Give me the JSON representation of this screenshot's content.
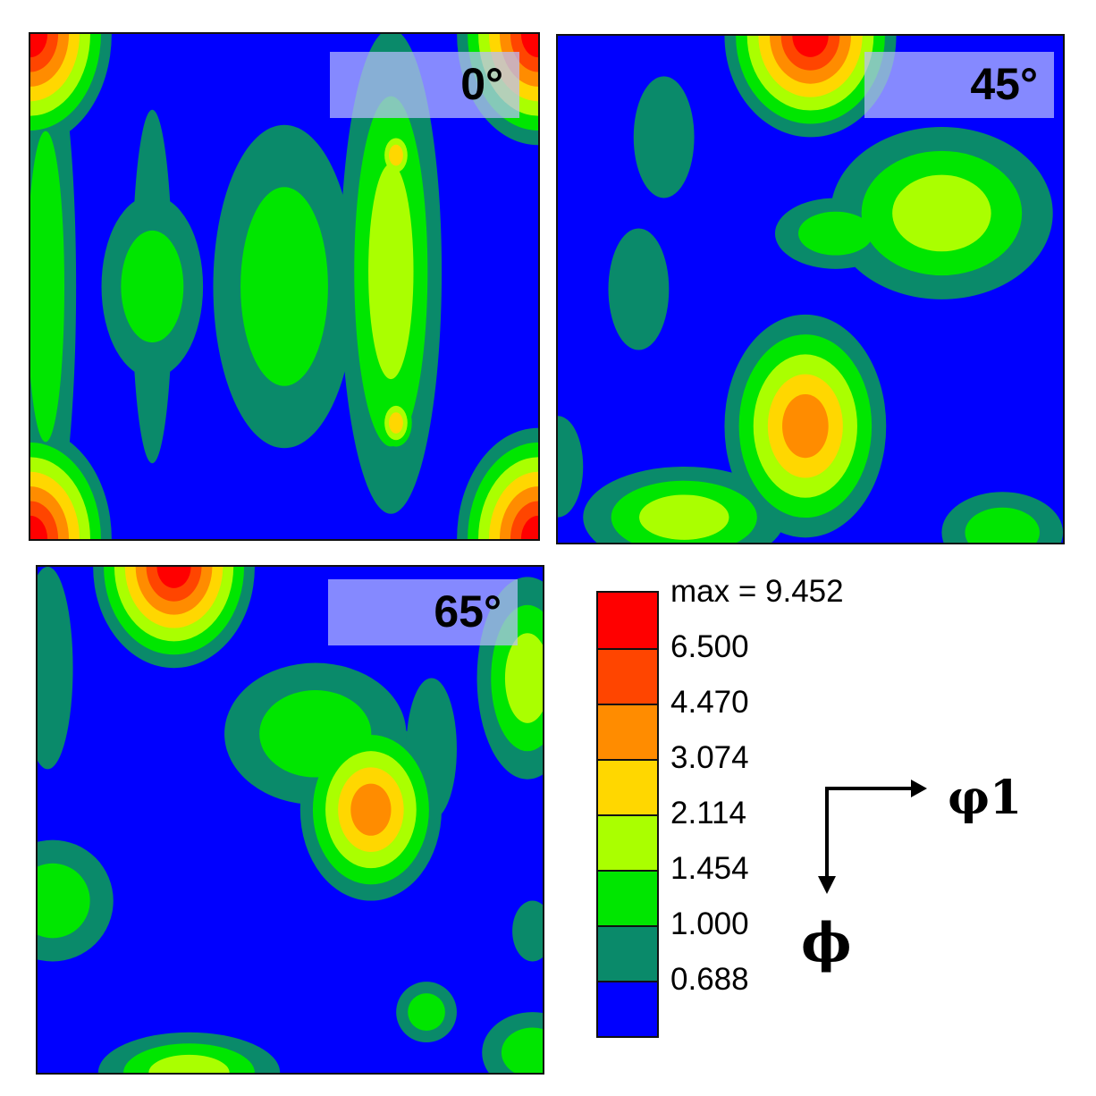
{
  "chart_data": {
    "type": "heatmap",
    "panels": [
      {
        "id": "p0",
        "label": "0°"
      },
      {
        "id": "p45",
        "label": "45°"
      },
      {
        "id": "p65",
        "label": "65°"
      }
    ],
    "levels": [
      {
        "label": "0.688",
        "color": "#0000ff"
      },
      {
        "label": "1.000",
        "color": "#0a8a6a"
      },
      {
        "label": "1.454",
        "color": "#00e600"
      },
      {
        "label": "2.114",
        "color": "#aaff00"
      },
      {
        "label": "3.074",
        "color": "#ffd700"
      },
      {
        "label": "4.470",
        "color": "#ff8c00"
      },
      {
        "label": "6.500",
        "color": "#ff4500"
      },
      {
        "label": "max = 9.452",
        "color": "#ff0000"
      }
    ],
    "axes": {
      "x": "φ1",
      "y": "ϕ"
    },
    "features": {
      "p0": [
        {
          "cx": 0.0,
          "cy": 0.0,
          "rx": 0.16,
          "ry": 0.22,
          "peak": 7
        },
        {
          "cx": 0.0,
          "cy": 1.0,
          "rx": 0.16,
          "ry": 0.22,
          "peak": 7
        },
        {
          "cx": 1.0,
          "cy": 0.0,
          "rx": 0.16,
          "ry": 0.22,
          "peak": 7
        },
        {
          "cx": 1.0,
          "cy": 1.0,
          "rx": 0.16,
          "ry": 0.22,
          "peak": 7
        },
        {
          "cx": 0.03,
          "cy": 0.5,
          "rx": 0.06,
          "ry": 0.5,
          "peak": 2
        },
        {
          "cx": 0.24,
          "cy": 0.5,
          "rx": 0.1,
          "ry": 0.18,
          "peak": 2
        },
        {
          "cx": 0.24,
          "cy": 0.5,
          "rx": 0.04,
          "ry": 0.35,
          "peak": 1
        },
        {
          "cx": 0.5,
          "cy": 0.5,
          "rx": 0.14,
          "ry": 0.32,
          "peak": 2
        },
        {
          "cx": 0.71,
          "cy": 0.47,
          "rx": 0.1,
          "ry": 0.48,
          "peak": 3
        },
        {
          "cx": 0.72,
          "cy": 0.24,
          "rx": 0.04,
          "ry": 0.06,
          "peak": 4
        },
        {
          "cx": 0.72,
          "cy": 0.77,
          "rx": 0.04,
          "ry": 0.06,
          "peak": 4
        }
      ],
      "p45": [
        {
          "cx": 0.5,
          "cy": 0.0,
          "rx": 0.17,
          "ry": 0.2,
          "peak": 7
        },
        {
          "cx": 0.49,
          "cy": 0.77,
          "rx": 0.16,
          "ry": 0.22,
          "peak": 5
        },
        {
          "cx": 0.76,
          "cy": 0.35,
          "rx": 0.22,
          "ry": 0.17,
          "peak": 3
        },
        {
          "cx": 0.55,
          "cy": 0.39,
          "rx": 0.12,
          "ry": 0.07,
          "peak": 2
        },
        {
          "cx": 0.21,
          "cy": 0.2,
          "rx": 0.06,
          "ry": 0.12,
          "peak": 1
        },
        {
          "cx": 0.16,
          "cy": 0.5,
          "rx": 0.06,
          "ry": 0.12,
          "peak": 1
        },
        {
          "cx": 0.25,
          "cy": 0.95,
          "rx": 0.2,
          "ry": 0.1,
          "peak": 3
        },
        {
          "cx": 0.88,
          "cy": 0.98,
          "rx": 0.12,
          "ry": 0.08,
          "peak": 2
        },
        {
          "cx": 0.0,
          "cy": 0.85,
          "rx": 0.05,
          "ry": 0.1,
          "peak": 1
        }
      ],
      "p65": [
        {
          "cx": 0.27,
          "cy": 0.0,
          "rx": 0.16,
          "ry": 0.2,
          "peak": 7
        },
        {
          "cx": 0.66,
          "cy": 0.48,
          "rx": 0.14,
          "ry": 0.18,
          "peak": 5
        },
        {
          "cx": 0.55,
          "cy": 0.33,
          "rx": 0.18,
          "ry": 0.14,
          "peak": 2
        },
        {
          "cx": 0.97,
          "cy": 0.22,
          "rx": 0.1,
          "ry": 0.2,
          "peak": 3
        },
        {
          "cx": 0.02,
          "cy": 0.2,
          "rx": 0.05,
          "ry": 0.2,
          "peak": 1
        },
        {
          "cx": 0.03,
          "cy": 0.66,
          "rx": 0.12,
          "ry": 0.12,
          "peak": 2
        },
        {
          "cx": 0.78,
          "cy": 0.36,
          "rx": 0.05,
          "ry": 0.14,
          "peak": 1
        },
        {
          "cx": 0.77,
          "cy": 0.88,
          "rx": 0.06,
          "ry": 0.06,
          "peak": 2
        },
        {
          "cx": 0.3,
          "cy": 1.0,
          "rx": 0.18,
          "ry": 0.08,
          "peak": 3
        },
        {
          "cx": 0.98,
          "cy": 0.96,
          "rx": 0.1,
          "ry": 0.08,
          "peak": 2
        },
        {
          "cx": 0.98,
          "cy": 0.72,
          "rx": 0.04,
          "ry": 0.06,
          "peak": 1
        }
      ]
    }
  }
}
